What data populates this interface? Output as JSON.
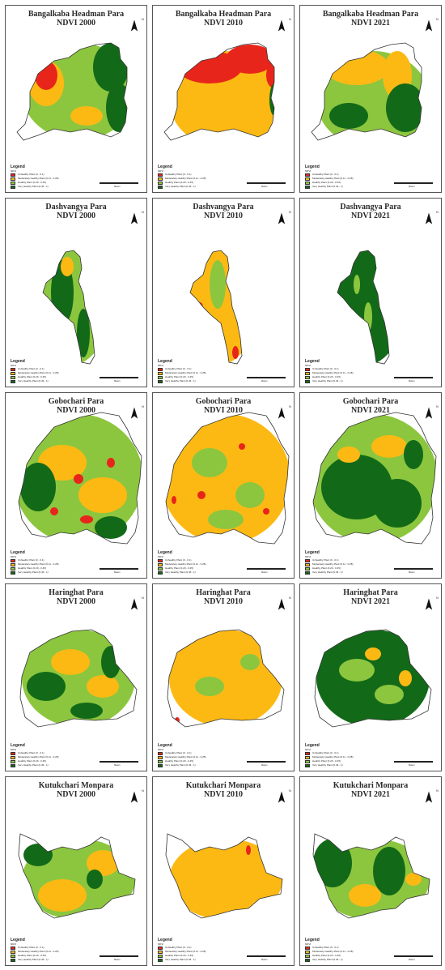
{
  "colors": {
    "unhealthy": "#e8251b",
    "moderate": "#fdb913",
    "healthy": "#8cc63f",
    "very_healthy": "#126a18",
    "boundary": "#333333",
    "frame": "#555555"
  },
  "legend": {
    "title": "Legend",
    "subtitle": "NDVI",
    "items": [
      "Unhealthy Plant (0 - 0.1)",
      "Moderately Healthy Plant (0.11 - 0.28)",
      "Healthy Plant (0.29 - 0.45)",
      "Very Healthy Plant (0.46 - 1)"
    ]
  },
  "north_label": "N",
  "scale_label": "Meters",
  "sites": [
    {
      "name": "Bangalkaba Headman Para",
      "panels": [
        {
          "title": "Bangalkaba Headman Para",
          "subtitle": "NDVI 2000"
        },
        {
          "title": "Bangalkaba Headman Para",
          "subtitle": "NDVI 2010"
        },
        {
          "title": "Bangalkaba Headman Para",
          "subtitle": "NDVI 2021"
        }
      ]
    },
    {
      "name": "Dashvangya Para",
      "panels": [
        {
          "title": "Dashvangya Para",
          "subtitle": "NDVI 2000"
        },
        {
          "title": "Dashvangya Para",
          "subtitle": "NDVI 2010"
        },
        {
          "title": "Dashvangya Para",
          "subtitle": "NDVI 2021"
        }
      ]
    },
    {
      "name": "Gobochari Para",
      "panels": [
        {
          "title": "Gobochari Para",
          "subtitle": "NDVI 2000"
        },
        {
          "title": "Gobochari Para",
          "subtitle": "NDVI 2010"
        },
        {
          "title": "Gobochari Para",
          "subtitle": "NDVI 2021"
        }
      ]
    },
    {
      "name": "Haringhat Para",
      "panels": [
        {
          "title": "Haringhat Para",
          "subtitle": "NDVI 2000"
        },
        {
          "title": "Haringhat Para",
          "subtitle": "NDVI 2010"
        },
        {
          "title": "Haringhat Para",
          "subtitle": "NDVI 2021"
        }
      ]
    },
    {
      "name": "Kutukchari Monpara",
      "panels": [
        {
          "title": "Kutukchari Monpara",
          "subtitle": "NDVI 2000"
        },
        {
          "title": "Kutukchari Monpara",
          "subtitle": "NDVI 2010"
        },
        {
          "title": "Kutukchari Monpara",
          "subtitle": "NDVI 2021"
        }
      ]
    }
  ]
}
